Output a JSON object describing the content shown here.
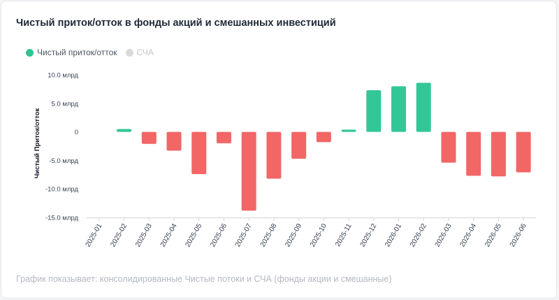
{
  "title": "Чистый приток/отток в фонды акций и смешанных инвестиций",
  "legend": {
    "items": [
      {
        "label": "Чистый приток/отток",
        "color": "#2fc492",
        "active": true
      },
      {
        "label": "СЧА",
        "color": "#d9d9d9",
        "active": false
      }
    ]
  },
  "caption": "График показывает: консолидированные Чистые потоки и СЧА (фонды акции и смешанные)",
  "colors": {
    "positive": "#33c797",
    "negative": "#f26666",
    "axis": "#d1d5db"
  },
  "chart_data": {
    "type": "bar",
    "ylabel": "Чистый Приток/отток",
    "ylim": [
      -15,
      10
    ],
    "yticks": [
      10,
      5,
      0,
      -5,
      -10,
      -15
    ],
    "ytick_labels": [
      "10.0 млрд",
      "5.0 млрд",
      "0",
      "-5.0 млрд",
      "-10.0 млрд",
      "-15.0 млрд"
    ],
    "categories": [
      "2025-01",
      "2025-02",
      "2025-03",
      "2025-04",
      "2025-05",
      "2025-06",
      "2025-07",
      "2025-08",
      "2025-09",
      "2025-10",
      "2025-11",
      "2025-12",
      "2026-01",
      "2026-02",
      "2026-03",
      "2026-04",
      "2026-05",
      "2026-06"
    ],
    "series": [
      {
        "values": [
          0,
          0.5,
          -2.1,
          -3.3,
          -7.4,
          -2.0,
          -13.8,
          -8.2,
          -4.7,
          -1.8,
          0.4,
          7.3,
          8.0,
          8.6,
          -5.4,
          -7.7,
          -7.8,
          -7.1
        ]
      }
    ],
    "grid": false
  }
}
